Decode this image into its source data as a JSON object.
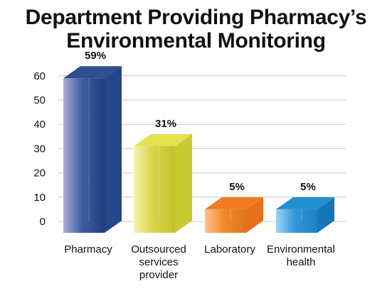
{
  "chart_data": {
    "type": "bar",
    "title_lines": [
      "Department Providing Pharmacy’s",
      "Environmental Monitoring"
    ],
    "xlabel": "",
    "ylabel": "",
    "ylim": [
      0,
      60
    ],
    "yticks": [
      0,
      10,
      20,
      30,
      40,
      50,
      60
    ],
    "grid": true,
    "legend": "none",
    "categories": [
      [
        "Pharmacy"
      ],
      [
        "Outsourced",
        "services",
        "provider"
      ],
      [
        "Laboratory"
      ],
      [
        "Environmental",
        "health"
      ]
    ],
    "values": [
      59,
      31,
      5,
      5
    ],
    "data_labels": [
      "59%",
      "31%",
      "5%",
      "5%"
    ],
    "colors": [
      {
        "light": "#a9b0d4",
        "mid": "#3f5da0",
        "dark": "#1f3f7f",
        "top": "#2f4f90",
        "side": "#24468b"
      },
      {
        "light": "#f6f4b0",
        "mid": "#d7d64b",
        "dark": "#c2c22b",
        "top": "#e3e34f",
        "side": "#c8cc33"
      },
      {
        "light": "#fbc290",
        "mid": "#f28b2c",
        "dark": "#e07420",
        "top": "#ef7c22",
        "side": "#e8701d"
      },
      {
        "light": "#9fd3f3",
        "mid": "#3399d8",
        "dark": "#1a82c4",
        "top": "#1f8fd2",
        "side": "#1677b8"
      }
    ]
  }
}
